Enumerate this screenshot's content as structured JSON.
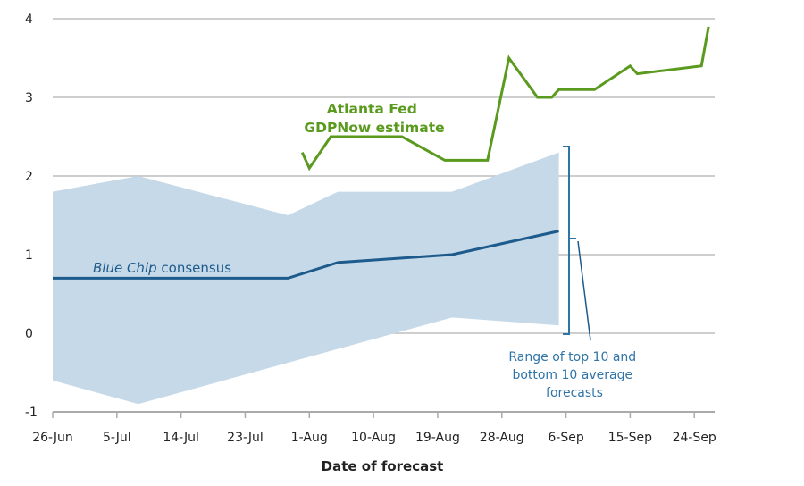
{
  "chart_data": {
    "type": "line",
    "title": "",
    "xlabel": "Date of forecast",
    "ylabel": "",
    "ylim": [
      -1,
      4
    ],
    "yticks": [
      "-1",
      "0",
      "1",
      "2",
      "3",
      "4"
    ],
    "xticks": [
      "26-Jun",
      "5-Jul",
      "14-Jul",
      "23-Jul",
      "1-Aug",
      "10-Aug",
      "19-Aug",
      "28-Aug",
      "6-Sep",
      "15-Sep",
      "24-Sep"
    ],
    "grid": "horizontal",
    "colors": {
      "gdpnow": "#5a9a1e",
      "consensus": "#1d5b8c",
      "band": "#c5d9e8",
      "annotation": "#2f74a6",
      "grid": "#bdbdbd"
    },
    "series": [
      {
        "name": "Atlanta Fed GDPNow estimate",
        "label_lines": [
          "Atlanta Fed",
          "GDPNow estimate"
        ],
        "x": [
          "31-Jul",
          "1-Aug",
          "4-Aug",
          "14-Aug",
          "20-Aug",
          "26-Aug",
          "29-Aug",
          "2-Sep",
          "4-Sep",
          "5-Sep",
          "10-Sep",
          "15-Sep",
          "16-Sep",
          "25-Sep",
          "26-Sep"
        ],
        "values": [
          2.3,
          2.1,
          2.5,
          2.5,
          2.2,
          2.2,
          3.5,
          3.0,
          3.0,
          3.1,
          3.1,
          3.4,
          3.3,
          3.4,
          3.9
        ]
      },
      {
        "name": "Blue Chip consensus",
        "label_italic": "Blue Chip",
        "label_rest": " consensus",
        "x": [
          "26-Jun",
          "29-Jul",
          "5-Aug",
          "21-Aug",
          "5-Sep"
        ],
        "values": [
          0.7,
          0.7,
          0.9,
          1.0,
          1.3
        ]
      }
    ],
    "band": {
      "label_lines": [
        "Range of top 10 and",
        "bottom 10 average",
        "forecasts"
      ],
      "upper": {
        "x": [
          "26-Jun",
          "8-Jul",
          "29-Jul",
          "5-Aug",
          "21-Aug",
          "5-Sep"
        ],
        "values": [
          1.8,
          2.0,
          1.5,
          1.8,
          1.8,
          2.3
        ]
      },
      "lower": {
        "x": [
          "26-Jun",
          "8-Jul",
          "21-Aug",
          "5-Sep"
        ],
        "values": [
          -0.6,
          -0.9,
          0.2,
          0.1
        ]
      }
    }
  }
}
